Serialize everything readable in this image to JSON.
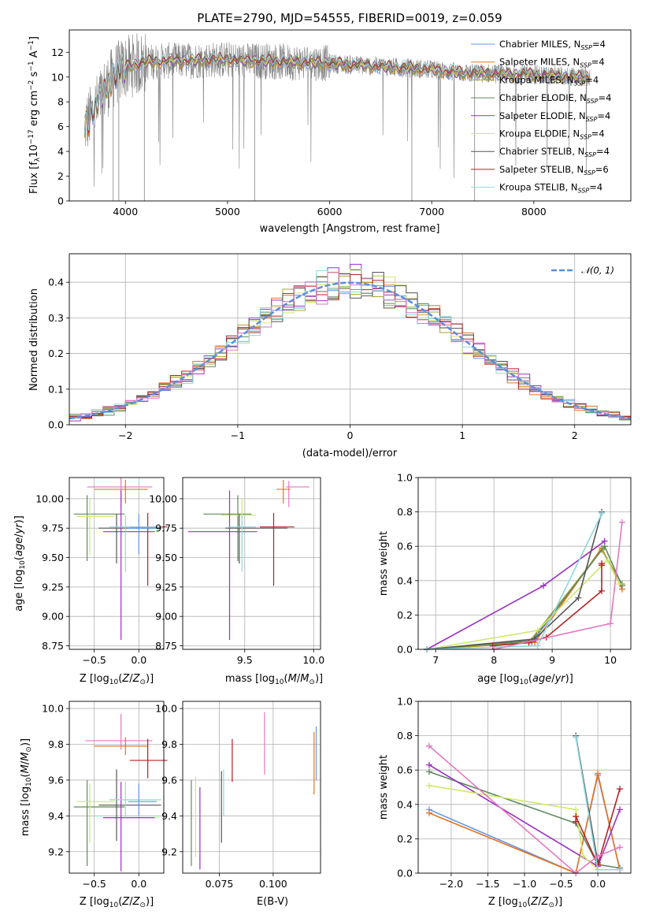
{
  "chart_data": [
    {
      "type": "line",
      "title": "PLATE=2790, MJD=54555, FIBERID=0019, z=0.059",
      "xlabel": "wavelength [Angstrom, rest frame]",
      "ylabel": "Flux [f_λ 10^-17 erg cm^-2 s^-1 A^-1]",
      "xlim": [
        3450,
        8950
      ],
      "ylim": [
        0,
        13.8
      ],
      "xticks": [
        "4000",
        "5000",
        "6000",
        "7000",
        "8000"
      ],
      "yticks": [
        "0",
        "2",
        "4",
        "6",
        "8",
        "10",
        "12"
      ],
      "legend_position": "upper-right",
      "data_color": "#808080",
      "continuum": {
        "x": [
          3600,
          3700,
          3800,
          3900,
          4000,
          4200,
          4400,
          4600,
          4800,
          5000,
          5200,
          5400,
          5600,
          5800,
          6000,
          6200,
          6400,
          6600,
          6800,
          7000,
          7200,
          7400,
          7600,
          7800,
          8000,
          8200,
          8400,
          8550
        ],
        "y": [
          6.0,
          7.4,
          9.0,
          10.2,
          10.8,
          11.2,
          11.3,
          11.3,
          11.4,
          11.4,
          11.3,
          11.3,
          11.2,
          11.2,
          11.1,
          11.0,
          10.9,
          10.8,
          10.7,
          10.6,
          10.4,
          10.3,
          10.3,
          10.2,
          10.2,
          10.1,
          10.0,
          10.0
        ]
      },
      "series": [
        {
          "label": "Chabrier MILES, N",
          "sub": "SSP",
          "suffix": "=4",
          "color": "#6495ed"
        },
        {
          "label": "Salpeter MILES, N",
          "sub": "SSP",
          "suffix": "=4",
          "color": "#e8731e"
        },
        {
          "label": "Kroupa MILES, N",
          "sub": "SSP",
          "suffix": "=4",
          "color": "#a6a62f"
        },
        {
          "label": "Chabrier ELODIE, N",
          "sub": "SSP",
          "suffix": "=4",
          "color": "#5f8a5f"
        },
        {
          "label": "Salpeter ELODIE, N",
          "sub": "SSP",
          "suffix": "=4",
          "color": "#9b30c0"
        },
        {
          "label": "Kroupa ELODIE, N",
          "sub": "SSP",
          "suffix": "=4",
          "color": "#cfe86c"
        },
        {
          "label": "Chabrier STELIB, N",
          "sub": "SSP",
          "suffix": "=4",
          "color": "#555555"
        },
        {
          "label": "Salpeter STELIB, N",
          "sub": "SSP",
          "suffix": "=6",
          "color": "#b22222"
        },
        {
          "label": "Kroupa STELIB, N",
          "sub": "SSP",
          "suffix": "=4",
          "color": "#8fd8e0"
        }
      ]
    },
    {
      "type": "step",
      "xlabel": "(data-model)/error",
      "ylabel": "Normed distribution",
      "xlim": [
        -2.5,
        2.5
      ],
      "ylim": [
        0,
        0.48
      ],
      "xticks": [
        "−2",
        "−1",
        "0",
        "1",
        "2"
      ],
      "yticks": [
        "0.0",
        "0.1",
        "0.2",
        "0.3",
        "0.4"
      ],
      "grid": true,
      "legend_position": "upper-right",
      "gaussian_label": "𝒩(0, 1)",
      "gaussian_color": "#5b8fd9",
      "bin_width": 0.1,
      "histogram_colors": [
        "#6495ed",
        "#e8731e",
        "#a6a62f",
        "#5f8a5f",
        "#9b30c0",
        "#cfe86c",
        "#555555",
        "#b22222",
        "#8fd8e0",
        "#e377c2"
      ]
    },
    {
      "type": "errorbar",
      "xlabel": "Z [log10(Z/Z⊙)]",
      "ylabel": "age [log10(age/yr)]",
      "xlim": [
        -0.78,
        0.28
      ],
      "ylim": [
        8.72,
        10.18
      ],
      "xticks": [
        "−0.5",
        "0.0"
      ],
      "yticks": [
        "8.75",
        "9.00",
        "9.25",
        "9.50",
        "9.75",
        "10.00"
      ],
      "grid": true,
      "points": [
        {
          "x": -0.2,
          "y": 10.1,
          "xerr": [
            0.38,
            0.35
          ],
          "yerr": [
            0.17,
            0.08
          ],
          "color": "#e377c2"
        },
        {
          "x": -0.15,
          "y": 10.08,
          "xerr": [
            0.35,
            0.25
          ],
          "yerr": [
            0.12,
            0.08
          ],
          "color": "#e8731e"
        },
        {
          "x": -0.58,
          "y": 9.87,
          "xerr": [
            0.15,
            0.42
          ],
          "yerr": [
            0.4,
            0.16
          ],
          "color": "#5f8a5f"
        },
        {
          "x": -0.55,
          "y": 9.85,
          "xerr": [
            0.15,
            0.28
          ],
          "yerr": [
            0.33,
            0.15
          ],
          "color": "#cfe86c"
        },
        {
          "x": -0.2,
          "y": 9.72,
          "xerr": [
            0.2,
            0.38
          ],
          "yerr": [
            0.92,
            0.35
          ],
          "color": "#9b30c0"
        },
        {
          "x": -0.25,
          "y": 9.75,
          "xerr": [
            0.2,
            0.5
          ],
          "yerr": [
            0.3,
            0.12
          ],
          "color": "#555555"
        },
        {
          "x": 0.1,
          "y": 9.76,
          "xerr": [
            0.2,
            0.22
          ],
          "yerr": [
            0.5,
            0.12
          ],
          "color": "#b22222"
        },
        {
          "x": -0.15,
          "y": 9.76,
          "xerr": [
            0.18,
            0.4
          ],
          "yerr": [
            0.38,
            0.1
          ],
          "color": "#8fd8e0"
        },
        {
          "x": 0.0,
          "y": 9.75,
          "xerr": [
            0.12,
            0.2
          ],
          "yerr": [
            0.22,
            0.12
          ],
          "color": "#6495ed"
        }
      ]
    },
    {
      "type": "errorbar",
      "xlabel": "mass [log10(M/M⊙)]",
      "xlim": [
        9.05,
        10.05
      ],
      "ylim": [
        8.72,
        10.18
      ],
      "xticks": [
        "9.5",
        "10.0"
      ],
      "yticks": [
        "8.75",
        "9.00",
        "9.25",
        "9.50",
        "9.75",
        "10.00"
      ],
      "grid": true,
      "points": [
        {
          "x": 9.82,
          "y": 10.1,
          "xerr": [
            0.02,
            0.15
          ],
          "yerr": [
            0.17,
            0.05
          ],
          "color": "#e377c2"
        },
        {
          "x": 9.78,
          "y": 10.08,
          "xerr": [
            0.05,
            0.05
          ],
          "yerr": [
            0.12,
            0.08
          ],
          "color": "#e8731e"
        },
        {
          "x": 9.45,
          "y": 9.87,
          "xerr": [
            0.25,
            0.1
          ],
          "yerr": [
            0.4,
            0.16
          ],
          "color": "#5f8a5f"
        },
        {
          "x": 9.48,
          "y": 9.86,
          "xerr": [
            0.15,
            0.1
          ],
          "yerr": [
            0.33,
            0.14
          ],
          "color": "#cfe86c"
        },
        {
          "x": 9.39,
          "y": 9.72,
          "xerr": [
            0.3,
            0.2
          ],
          "yerr": [
            0.92,
            0.35
          ],
          "color": "#9b30c0"
        },
        {
          "x": 9.46,
          "y": 9.75,
          "xerr": [
            0.1,
            0.35
          ],
          "yerr": [
            0.3,
            0.12
          ],
          "color": "#555555"
        },
        {
          "x": 9.71,
          "y": 9.76,
          "xerr": [
            0.1,
            0.15
          ],
          "yerr": [
            0.5,
            0.12
          ],
          "color": "#b22222"
        },
        {
          "x": 9.48,
          "y": 9.76,
          "xerr": [
            0.1,
            0.1
          ],
          "yerr": [
            0.38,
            0.1
          ],
          "color": "#8fd8e0"
        }
      ]
    },
    {
      "type": "line",
      "xlabel": "age  [log10(age/yr)]",
      "ylabel": "mass weight",
      "xlim": [
        6.7,
        10.35
      ],
      "ylim": [
        0,
        1.0
      ],
      "xticks": [
        "7",
        "8",
        "9",
        "10"
      ],
      "yticks": [
        "0.0",
        "0.2",
        "0.4",
        "0.6",
        "0.8",
        "1.0"
      ],
      "grid": true,
      "series": [
        {
          "color": "#6495ed",
          "x": [
            6.85,
            8.65,
            9.85,
            10.2
          ],
          "y": [
            0.0,
            0.04,
            0.58,
            0.38
          ]
        },
        {
          "color": "#e8731e",
          "x": [
            6.85,
            8.7,
            9.85,
            10.2
          ],
          "y": [
            0.0,
            0.04,
            0.59,
            0.35
          ]
        },
        {
          "color": "#a6a62f",
          "x": [
            6.85,
            8.6,
            9.85,
            10.2
          ],
          "y": [
            0.0,
            0.04,
            0.58,
            0.38
          ]
        },
        {
          "color": "#5f8a5f",
          "x": [
            6.85,
            8.65,
            9.9,
            10.2
          ],
          "y": [
            0.0,
            0.05,
            0.6,
            0.37
          ]
        },
        {
          "color": "#9b30c0",
          "x": [
            6.85,
            8.85,
            9.9
          ],
          "y": [
            0.0,
            0.37,
            0.63
          ]
        },
        {
          "color": "#cfe86c",
          "x": [
            6.85,
            8.75,
            9.95,
            10.15
          ],
          "y": [
            0.0,
            0.11,
            0.52,
            0.38
          ]
        },
        {
          "color": "#555555",
          "x": [
            6.85,
            8.7,
            9.45,
            9.85
          ],
          "y": [
            0.0,
            0.06,
            0.3,
            0.8
          ]
        },
        {
          "color": "#b22222",
          "x": [
            7.98,
            8.6,
            8.9,
            9.85,
            9.85,
            9.85
          ],
          "y": [
            0.02,
            0.04,
            0.07,
            0.34,
            0.5,
            0.49
          ]
        },
        {
          "color": "#8fd8e0",
          "x": [
            6.85,
            8.75,
            9.85
          ],
          "y": [
            0.0,
            0.02,
            0.79
          ]
        },
        {
          "color": "#e377c2",
          "x": [
            8.0,
            10.0,
            10.2
          ],
          "y": [
            0.0,
            0.15,
            0.74
          ]
        }
      ]
    },
    {
      "type": "errorbar",
      "xlabel": "Z [log10(Z/Z⊙)]",
      "ylabel": "mass [log10(M/M⊙)]",
      "xlim": [
        -0.78,
        0.28
      ],
      "ylim": [
        9.08,
        10.04
      ],
      "xticks": [
        "−0.5",
        "0.0"
      ],
      "yticks": [
        "9.2",
        "9.4",
        "9.6",
        "9.8",
        "10.0"
      ],
      "grid": true,
      "points": [
        {
          "x": -0.2,
          "y": 9.82,
          "xerr": [
            0.4,
            0.35
          ],
          "yerr": [
            0.05,
            0.15
          ],
          "color": "#e377c2"
        },
        {
          "x": -0.15,
          "y": 9.79,
          "xerr": [
            0.35,
            0.25
          ],
          "yerr": [
            0.05,
            0.05
          ],
          "color": "#e8731e"
        },
        {
          "x": -0.58,
          "y": 9.45,
          "xerr": [
            0.15,
            0.42
          ],
          "yerr": [
            0.33,
            0.15
          ],
          "color": "#5f8a5f"
        },
        {
          "x": -0.55,
          "y": 9.48,
          "xerr": [
            0.15,
            0.28
          ],
          "yerr": [
            0.23,
            0.1
          ],
          "color": "#cfe86c"
        },
        {
          "x": -0.2,
          "y": 9.39,
          "xerr": [
            0.2,
            0.38
          ],
          "yerr": [
            0.3,
            0.2
          ],
          "color": "#9b30c0"
        },
        {
          "x": -0.25,
          "y": 9.46,
          "xerr": [
            0.2,
            0.5
          ],
          "yerr": [
            0.2,
            0.2
          ],
          "color": "#555555"
        },
        {
          "x": 0.1,
          "y": 9.71,
          "xerr": [
            0.2,
            0.22
          ],
          "yerr": [
            0.1,
            0.12
          ],
          "color": "#b22222"
        },
        {
          "x": -0.15,
          "y": 9.49,
          "xerr": [
            0.18,
            0.4
          ],
          "yerr": [
            0.1,
            0.1
          ],
          "color": "#8fd8e0"
        },
        {
          "x": 0.0,
          "y": 9.48,
          "xerr": [
            0.12,
            0.2
          ],
          "yerr": [
            0.08,
            0.1
          ],
          "color": "#6495ed"
        }
      ]
    },
    {
      "type": "errorbar",
      "xlabel": "E(B-V)",
      "xlim": [
        0.058,
        0.122
      ],
      "ylim": [
        9.08,
        10.04
      ],
      "xticks": [
        "0.075",
        "0.100"
      ],
      "yticks": [
        "9.2",
        "9.4",
        "9.6",
        "9.8",
        "10.0"
      ],
      "grid": true,
      "points": [
        {
          "x": 0.062,
          "y": 9.4,
          "yerr": [
            0.28,
            0.2
          ],
          "color": "#5f8a5f"
        },
        {
          "x": 0.064,
          "y": 9.42,
          "yerr": [
            0.25,
            0.2
          ],
          "color": "#cfe86c"
        },
        {
          "x": 0.066,
          "y": 9.38,
          "yerr": [
            0.28,
            0.18
          ],
          "color": "#9b30c0"
        },
        {
          "x": 0.076,
          "y": 9.45,
          "yerr": [
            0.2,
            0.2
          ],
          "color": "#555555"
        },
        {
          "x": 0.077,
          "y": 9.5,
          "yerr": [
            0.1,
            0.16
          ],
          "color": "#8fd8e0"
        },
        {
          "x": 0.081,
          "y": 9.71,
          "yerr": [
            0.12,
            0.12
          ],
          "color": "#b22222"
        },
        {
          "x": 0.096,
          "y": 9.78,
          "yerr": [
            0.15,
            0.2
          ],
          "color": "#e377c2"
        },
        {
          "x": 0.119,
          "y": 9.72,
          "yerr": [
            0.2,
            0.15
          ],
          "color": "#e8731e"
        },
        {
          "x": 0.12,
          "y": 9.75,
          "yerr": [
            0.15,
            0.15
          ],
          "color": "#6495ed"
        }
      ]
    },
    {
      "type": "line",
      "xlabel": "Z [log10(Z/Z⊙)]",
      "ylabel": "mass weight",
      "xlim": [
        -2.45,
        0.45
      ],
      "ylim": [
        0,
        1.0
      ],
      "xticks": [
        "−2.0",
        "−1.5",
        "−1.0",
        "−0.5",
        "0.0"
      ],
      "yticks": [
        "0.0",
        "0.2",
        "0.4",
        "0.6",
        "0.8",
        "1.0"
      ],
      "grid": true,
      "series": [
        {
          "color": "#6495ed",
          "x": [
            -2.3,
            -0.3,
            0.0,
            0.3
          ],
          "y": [
            0.37,
            0.0,
            0.57,
            0.02
          ]
        },
        {
          "color": "#e8731e",
          "x": [
            -2.3,
            -0.3,
            0.0,
            0.3
          ],
          "y": [
            0.35,
            0.0,
            0.58,
            0.02
          ]
        },
        {
          "color": "#5f8a5f",
          "x": [
            -2.3,
            -0.3,
            0.0,
            0.3
          ],
          "y": [
            0.59,
            0.29,
            0.05,
            0.03
          ]
        },
        {
          "color": "#9b30c0",
          "x": [
            -2.3,
            0.0,
            0.3
          ],
          "y": [
            0.63,
            0.04,
            0.37
          ]
        },
        {
          "color": "#cfe86c",
          "x": [
            -2.3,
            -0.3,
            -0.2,
            0.0
          ],
          "y": [
            0.51,
            0.37,
            0.1,
            0.02
          ]
        },
        {
          "color": "#555555",
          "x": [
            -0.3,
            0.0
          ],
          "y": [
            0.8,
            0.06
          ]
        },
        {
          "color": "#b22222",
          "x": [
            -0.3,
            -0.3,
            0.0,
            0.3
          ],
          "y": [
            0.3,
            0.33,
            0.05,
            0.49
          ]
        },
        {
          "color": "#8fd8e0",
          "x": [
            -0.3,
            0.0,
            0.3
          ],
          "y": [
            0.79,
            0.02,
            0.02
          ]
        },
        {
          "color": "#e377c2",
          "x": [
            -2.3,
            -0.3,
            0.0,
            0.3
          ],
          "y": [
            0.74,
            0.0,
            0.1,
            0.15
          ]
        }
      ]
    }
  ]
}
